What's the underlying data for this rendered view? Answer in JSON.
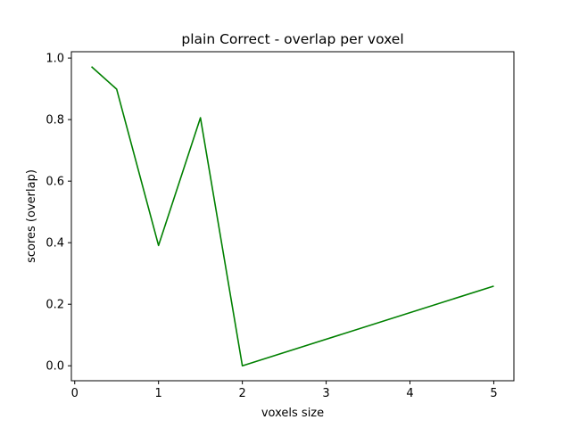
{
  "chart_data": {
    "type": "line",
    "title": "plain Correct - overlap per voxel",
    "xlabel": "voxels size",
    "ylabel": "scores (overlap)",
    "xlim": [
      -0.04,
      5.24
    ],
    "ylim": [
      -0.0486,
      1.0206
    ],
    "x_ticks": [
      0,
      1,
      2,
      3,
      4,
      5
    ],
    "y_ticks": [
      0.0,
      0.2,
      0.4,
      0.6,
      0.8,
      1.0
    ],
    "x_tick_labels": [
      "0",
      "1",
      "2",
      "3",
      "4",
      "5"
    ],
    "y_tick_labels": [
      "0.0",
      "0.2",
      "0.4",
      "0.6",
      "0.8",
      "1.0"
    ],
    "grid": false,
    "legend": "none",
    "series": [
      {
        "color": "#008000",
        "x": [
          0.2,
          0.5,
          1.0,
          1.5,
          2.0,
          5.0
        ],
        "y": [
          0.972,
          0.899,
          0.391,
          0.806,
          0.0,
          0.259
        ]
      }
    ]
  }
}
